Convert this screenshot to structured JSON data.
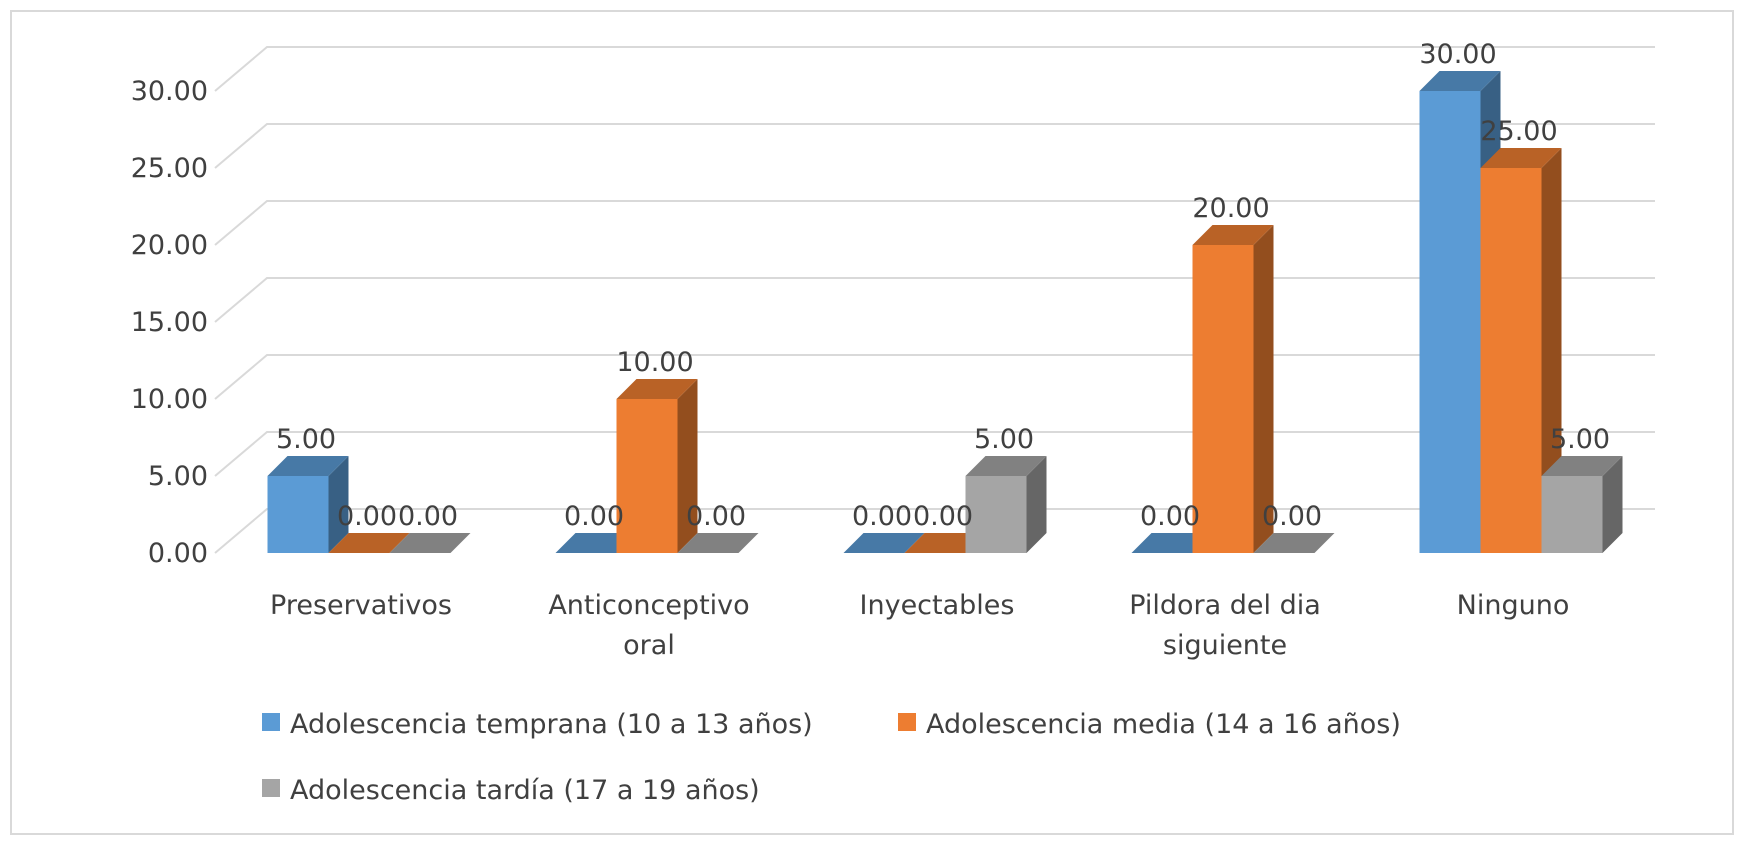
{
  "chart_data": {
    "type": "bar",
    "title": "",
    "xlabel": "",
    "ylabel": "",
    "ylim": [
      0,
      30
    ],
    "yticks": [
      "0.00",
      "5.00",
      "10.00",
      "15.00",
      "20.00",
      "25.00",
      "30.00"
    ],
    "grid": true,
    "three_d": true,
    "legend_position": "bottom",
    "categories": [
      [
        "Preservativos"
      ],
      [
        "Anticonceptivo",
        "oral"
      ],
      [
        "Inyectables"
      ],
      [
        "Pildora del dia",
        "siguiente"
      ],
      [
        "Ninguno"
      ]
    ],
    "series": [
      {
        "name": "Adolescencia temprana (10 a 13 años)",
        "color": "#5b9bd5",
        "values": [
          5.0,
          0.0,
          0.0,
          0.0,
          30.0
        ],
        "labels": [
          "5.00",
          "0.00",
          "0.00",
          "0.00",
          "30.00"
        ]
      },
      {
        "name": "Adolescencia media (14 a 16 años)",
        "color": "#ed7d31",
        "values": [
          0.0,
          10.0,
          0.0,
          20.0,
          25.0
        ],
        "labels": [
          "0.00",
          "10.00",
          "0.00",
          "20.00",
          "25.00"
        ]
      },
      {
        "name": "Adolescencia tardía (17 a 19 años)",
        "color": "#a5a5a5",
        "values": [
          0.0,
          0.0,
          5.0,
          0.0,
          5.0
        ],
        "labels": [
          "0.00",
          "0.00",
          "5.00",
          "0.00",
          "5.00"
        ]
      }
    ]
  }
}
